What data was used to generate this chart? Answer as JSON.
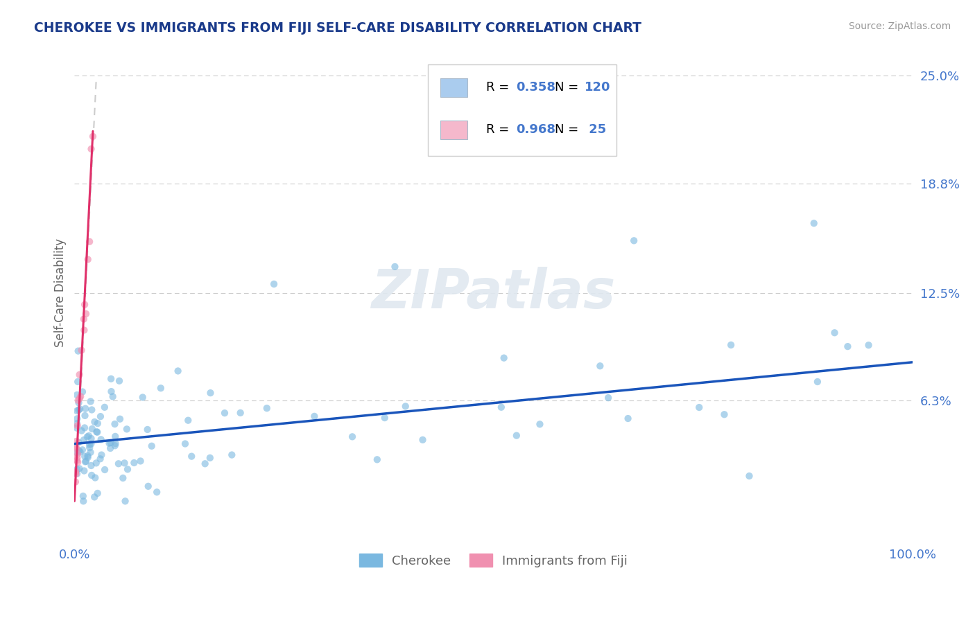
{
  "title": "CHEROKEE VS IMMIGRANTS FROM FIJI SELF-CARE DISABILITY CORRELATION CHART",
  "source": "Source: ZipAtlas.com",
  "ylabel": "Self-Care Disability",
  "xlim": [
    0,
    1.0
  ],
  "ylim": [
    -0.018,
    0.268
  ],
  "yticks": [
    0.0,
    0.063,
    0.125,
    0.188,
    0.25
  ],
  "ytick_labels": [
    "",
    "6.3%",
    "12.5%",
    "18.8%",
    "25.0%"
  ],
  "xtick_labels": [
    "0.0%",
    "100.0%"
  ],
  "legend_color": "#4477cc",
  "legend_entries": [
    {
      "label": "Cherokee",
      "R": "0.358",
      "N": "120",
      "patch_color": "#aaccee"
    },
    {
      "label": "Immigrants from Fiji",
      "R": "0.968",
      "N": " 25",
      "patch_color": "#f5b8cc"
    }
  ],
  "cherokee_scatter_color": "#7ab8e0",
  "cherokee_scatter_alpha": 0.6,
  "cherokee_scatter_size": 55,
  "cherokee_trend_color": "#1a55bb",
  "cherokee_trend_lw": 2.5,
  "cherokee_trend_x0": 0.0,
  "cherokee_trend_y0": 0.038,
  "cherokee_trend_x1": 1.0,
  "cherokee_trend_y1": 0.085,
  "fiji_scatter_color": "#f090b0",
  "fiji_scatter_alpha": 0.65,
  "fiji_scatter_size": 55,
  "fiji_trend_color": "#e0306a",
  "fiji_trend_lw": 2.2,
  "fiji_trend_x0": 0.0,
  "fiji_trend_y0": 0.005,
  "fiji_trend_x1": 0.022,
  "fiji_trend_y1": 0.218,
  "dashed_ext_color": "#cccccc",
  "watermark": "ZIPatlas",
  "background_color": "#ffffff",
  "grid_color": "#cccccc",
  "title_color": "#1a3a8a",
  "source_color": "#999999",
  "axis_label_color": "#666666",
  "tick_label_color": "#4477cc"
}
